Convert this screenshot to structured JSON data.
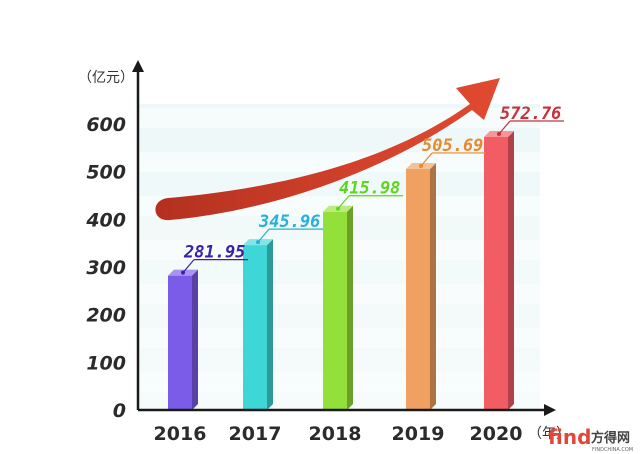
{
  "chart_data": {
    "type": "bar",
    "categories": [
      "2016",
      "2017",
      "2018",
      "2019",
      "2020"
    ],
    "values": [
      281.95,
      345.96,
      415.98,
      505.69,
      572.76
    ],
    "value_labels": [
      "281.95",
      "345.96",
      "415.98",
      "505.69",
      "572.76"
    ],
    "y_unit": "（亿元）",
    "x_unit": "（年）",
    "ylim": [
      0,
      600
    ],
    "yticks": [
      "0",
      "100",
      "200",
      "300",
      "400",
      "500",
      "600"
    ],
    "bar_colors": [
      "#7b5ce8",
      "#3ed6d6",
      "#94e03a",
      "#f0a060",
      "#f25c64"
    ],
    "label_colors": [
      "#3a22a8",
      "#28b0d8",
      "#5ed61e",
      "#e8892e",
      "#c8303a"
    ],
    "trend_arrow": true,
    "trend_color": "#c93a2c",
    "grid": false
  },
  "watermark": {
    "text": "find",
    "suffix": "方得网",
    "sub": "FINDCHINA.COM"
  }
}
